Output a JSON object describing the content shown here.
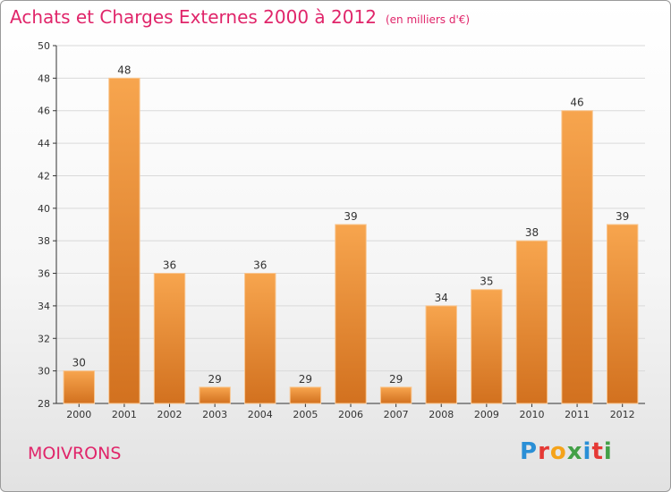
{
  "title": {
    "main": "Achats et Charges Externes 2000 à 2012",
    "unit": "(en milliers d'€)"
  },
  "commune": "MOIVRONS",
  "logo": {
    "letters": [
      {
        "char": "P",
        "color": "#2a8fd6"
      },
      {
        "char": "r",
        "color": "#e53935"
      },
      {
        "char": "o",
        "color": "#f5a31a"
      },
      {
        "char": "x",
        "color": "#43a047"
      },
      {
        "char": "i",
        "color": "#2a8fd6"
      },
      {
        "char": "t",
        "color": "#e53935"
      },
      {
        "char": "i",
        "color": "#43a047"
      }
    ]
  },
  "colors": {
    "bar_top": "#f7a54e",
    "bar_bottom": "#d2711f",
    "bar_stroke": "#f9c690",
    "title": "#e0256a",
    "grid": "#d9d9d9"
  },
  "chart_data": {
    "type": "bar",
    "title": "Achats et Charges Externes 2000 à 2012",
    "xlabel": "",
    "ylabel": "",
    "categories": [
      "2000",
      "2001",
      "2002",
      "2003",
      "2004",
      "2005",
      "2006",
      "2007",
      "2008",
      "2009",
      "2010",
      "2011",
      "2012"
    ],
    "values": [
      30,
      48,
      36,
      29,
      36,
      29,
      39,
      29,
      34,
      35,
      38,
      46,
      39
    ],
    "ylim": [
      28,
      50
    ],
    "yticks": [
      28,
      30,
      32,
      34,
      36,
      38,
      40,
      42,
      44,
      46,
      48,
      50
    ],
    "grid": true,
    "legend": "none"
  }
}
